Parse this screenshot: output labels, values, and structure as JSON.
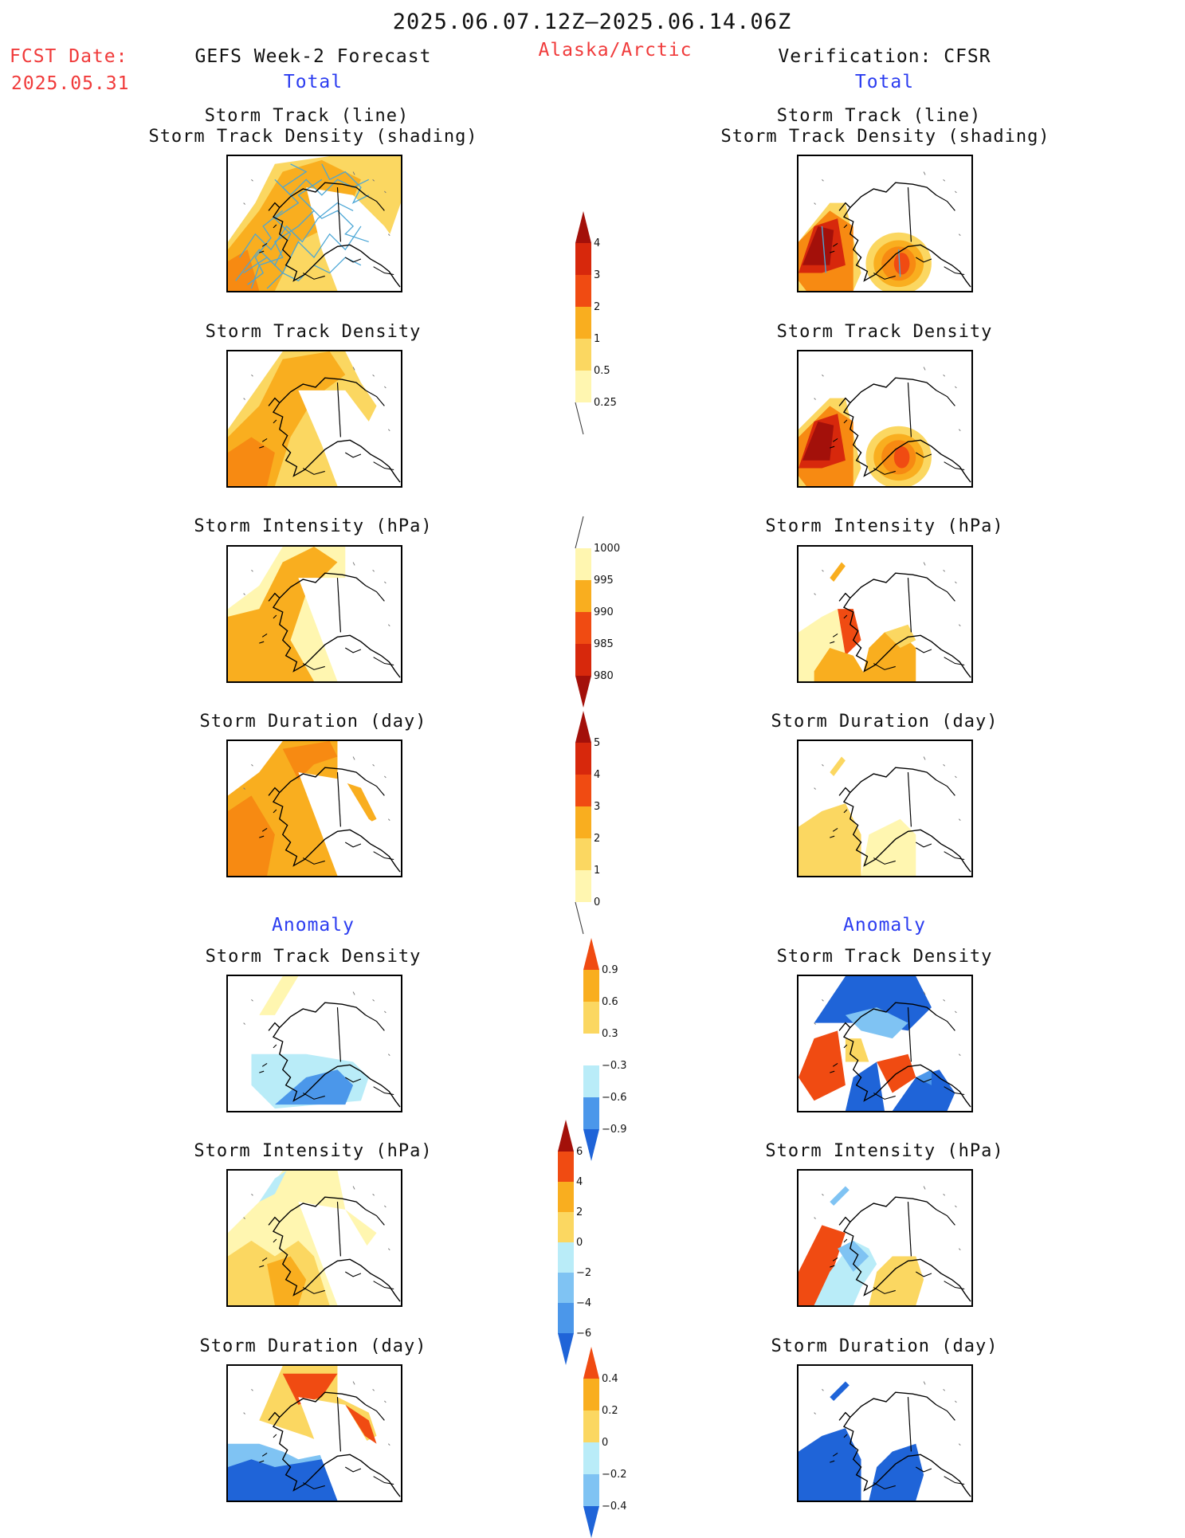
{
  "header": {
    "date_range": "2025.06.07.12Z–2025.06.14.06Z",
    "region": "Alaska/Arctic",
    "fcst_label": "FCST Date:",
    "fcst_date": "2025.05.31",
    "left_title": "GEFS Week-2 Forecast",
    "right_title": "Verification: CFSR",
    "total_left": "Total",
    "total_right": "Total",
    "anomaly_left": "Anomaly",
    "anomaly_right": "Anomaly"
  },
  "panels": {
    "track_line": "Storm Track (line)",
    "track_density_shading": "Storm Track Density (shading)",
    "track_density": "Storm Track Density",
    "intensity": "Storm Intensity (hPa)",
    "duration": "Storm Duration (day)"
  },
  "colorbars": {
    "track_density_total": [
      "4",
      "3",
      "2",
      "1",
      "0.5",
      "0.25"
    ],
    "intensity_total": [
      "1000",
      "995",
      "990",
      "985",
      "980"
    ],
    "duration_total": [
      "5",
      "4",
      "3",
      "2",
      "1",
      "0"
    ],
    "track_density_anom": [
      "0.9",
      "0.6",
      "0.3",
      "−0.3",
      "−0.6",
      "−0.9"
    ],
    "intensity_anom": [
      "6",
      "4",
      "2",
      "0",
      "−2",
      "−4",
      "−6"
    ],
    "duration_anom": [
      "0.4",
      "0.2",
      "0",
      "−0.2",
      "−0.4"
    ]
  },
  "colors": {
    "pale_yellow": "#fff6b0",
    "yellow": "#fbd761",
    "orange_light": "#f9ae1f",
    "orange": "#f78a12",
    "red_orange": "#f04b12",
    "red": "#d7280c",
    "dark_red": "#a3100a",
    "light_blue": "#b9ecf8",
    "sky_blue": "#7fc3f3",
    "mid_blue": "#4b97ea",
    "blue": "#1f64d8",
    "track_line": "#4aa6d6"
  }
}
